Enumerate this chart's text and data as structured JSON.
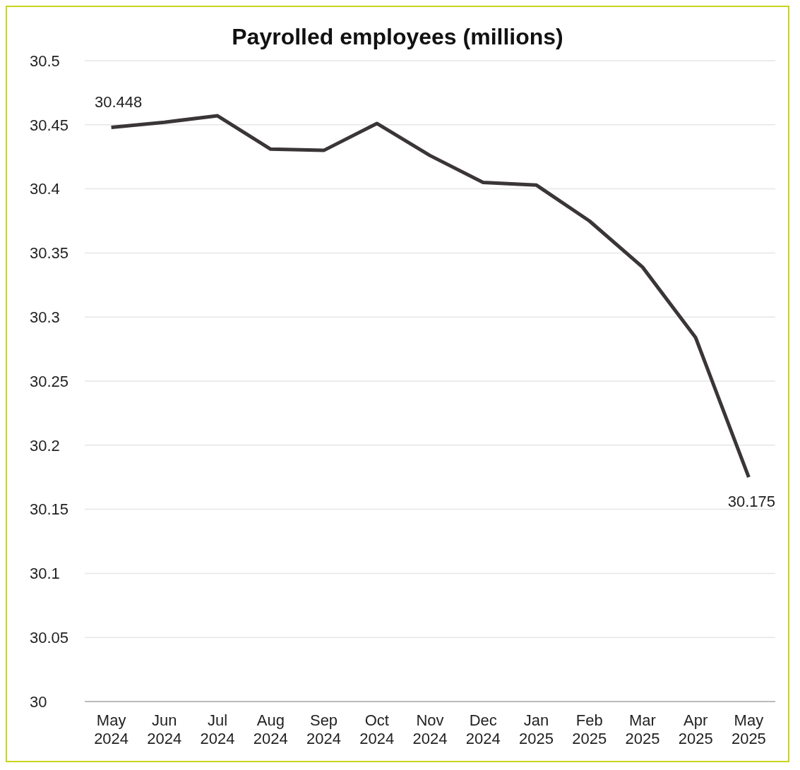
{
  "chart_data": {
    "type": "line",
    "title": "Payrolled employees (millions)",
    "categories": [
      "May 2024",
      "Jun 2024",
      "Jul 2024",
      "Aug 2024",
      "Sep 2024",
      "Oct 2024",
      "Nov 2024",
      "Dec 2024",
      "Jan 2025",
      "Feb 2025",
      "Mar 2025",
      "Apr 2025",
      "May 2025"
    ],
    "series": [
      {
        "color": "#3a3537",
        "values": [
          30.448,
          30.452,
          30.457,
          30.431,
          30.43,
          30.451,
          30.426,
          30.405,
          30.403,
          30.375,
          30.339,
          30.284,
          30.175
        ],
        "value_labels": [
          "30.448",
          null,
          null,
          null,
          null,
          null,
          null,
          null,
          null,
          null,
          null,
          null,
          "30.175"
        ]
      }
    ],
    "ylim": [
      30,
      30.5
    ],
    "yticks": [
      30,
      30.05,
      30.1,
      30.15,
      30.2,
      30.25,
      30.3,
      30.35,
      30.4,
      30.45,
      30.5
    ],
    "grid": "y",
    "legend": false,
    "marker": "none",
    "line_style": "solid"
  }
}
